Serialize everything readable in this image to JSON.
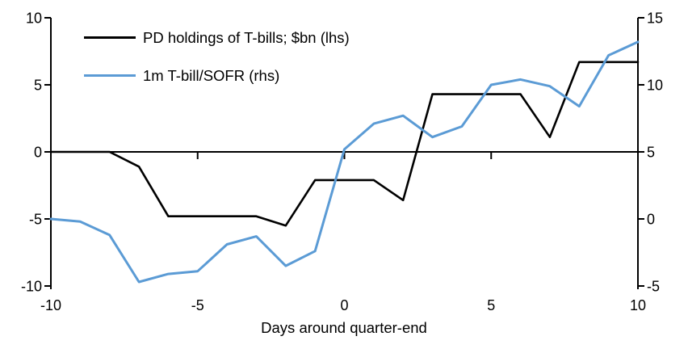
{
  "chart_data": {
    "type": "line",
    "title": "",
    "xlabel": "Days around quarter-end",
    "grid": false,
    "legend_position": "top-left",
    "x": [
      -10,
      -9,
      -8,
      -7,
      -6,
      -5,
      -4,
      -3,
      -2,
      -1,
      0,
      1,
      2,
      3,
      4,
      5,
      6,
      7,
      8,
      9,
      10
    ],
    "x_ticks": [
      -10,
      -5,
      0,
      5,
      10
    ],
    "axes": {
      "left": {
        "range": [
          -10,
          10
        ],
        "ticks": [
          10,
          5,
          0,
          -5,
          -10
        ]
      },
      "right": {
        "range": [
          -5,
          15
        ],
        "ticks": [
          15,
          10,
          5,
          0,
          -5
        ]
      }
    },
    "series": [
      {
        "name": "PD holdings of T-bills; $bn (lhs)",
        "axis": "left",
        "color": "#000000",
        "values": [
          0,
          0,
          0,
          -1.1,
          -4.8,
          -4.8,
          -4.8,
          -4.8,
          -5.5,
          -2.1,
          -2.1,
          -2.1,
          -3.6,
          4.3,
          4.3,
          4.3,
          4.3,
          1.1,
          6.7,
          6.7,
          6.7
        ]
      },
      {
        "name": "1m T-bill/SOFR (rhs)",
        "axis": "right",
        "color": "#5B9BD5",
        "values": [
          0.0,
          -0.2,
          -1.2,
          -4.7,
          -4.1,
          -3.9,
          -1.9,
          -1.3,
          -3.5,
          -2.4,
          5.2,
          7.1,
          7.7,
          6.1,
          6.9,
          10.0,
          10.4,
          9.9,
          8.4,
          12.2,
          13.2
        ]
      }
    ]
  },
  "colors": {
    "axis": "#000000",
    "background": "#ffffff",
    "series_black": "#000000",
    "series_blue": "#5B9BD5"
  }
}
